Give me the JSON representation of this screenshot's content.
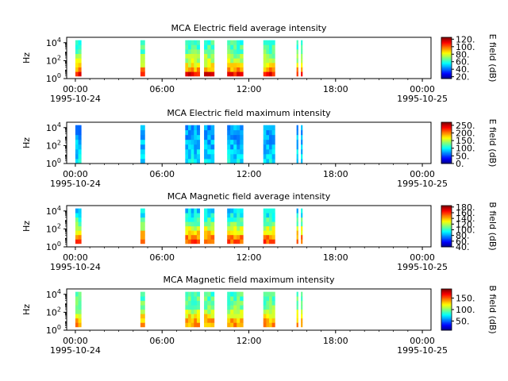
{
  "chart_data": [
    {
      "type": "heatmap",
      "title": "MCA  Electric field average intensity",
      "ylabel": "Hz",
      "colorbar_label": "E field (dB)",
      "colorbar_range": [
        15,
        125
      ],
      "colorbar_ticks": [
        "20.",
        "40.",
        "60.",
        "80.",
        "100.",
        "120."
      ],
      "x_ticks": [
        "00:00\n1995-10-24",
        "06:00",
        "12:00",
        "18:00",
        "00:00\n1995-10-25"
      ],
      "y_ticks": [
        "10^0",
        "10^2",
        "10^4"
      ],
      "y_log_range": [
        0,
        4.6
      ],
      "x_range_hours": [
        -0.6,
        24.6
      ],
      "segments_hours": [
        [
          0.0,
          0.4
        ],
        [
          4.5,
          4.8
        ],
        [
          7.6,
          8.6
        ],
        [
          8.9,
          9.6
        ],
        [
          10.5,
          11.6
        ],
        [
          13.0,
          13.8
        ],
        [
          15.3,
          15.4
        ],
        [
          15.6,
          15.7
        ]
      ]
    },
    {
      "type": "heatmap",
      "title": "MCA  Electric field maximum intensity",
      "ylabel": "Hz",
      "colorbar_label": "E field (dB)",
      "colorbar_range": [
        0,
        270
      ],
      "colorbar_ticks": [
        "0.",
        "50.",
        "100.",
        "150.",
        "200.",
        "250."
      ],
      "x_ticks": [
        "00:00\n1995-10-24",
        "06:00",
        "12:00",
        "18:00",
        "00:00\n1995-10-25"
      ],
      "y_ticks": [
        "10^0",
        "10^2",
        "10^4"
      ],
      "y_log_range": [
        0,
        4.6
      ],
      "x_range_hours": [
        -0.6,
        24.6
      ],
      "segments_hours": [
        [
          0.0,
          0.4
        ],
        [
          4.5,
          4.8
        ],
        [
          7.6,
          8.6
        ],
        [
          8.9,
          9.6
        ],
        [
          10.5,
          11.6
        ],
        [
          13.0,
          13.8
        ],
        [
          15.3,
          15.4
        ],
        [
          15.6,
          15.7
        ]
      ]
    },
    {
      "type": "heatmap",
      "title": "MCA  Magnetic field average intensity",
      "ylabel": "Hz",
      "colorbar_label": "B field (dB)",
      "colorbar_range": [
        40,
        185
      ],
      "colorbar_ticks": [
        "40.",
        "60.",
        "80.",
        "100.",
        "120.",
        "140.",
        "160.",
        "180."
      ],
      "x_ticks": [
        "00:00\n1995-10-24",
        "06:00",
        "12:00",
        "18:00",
        "00:00\n1995-10-25"
      ],
      "y_ticks": [
        "10^0",
        "10^2",
        "10^4"
      ],
      "y_log_range": [
        0,
        4.6
      ],
      "x_range_hours": [
        -0.6,
        24.6
      ],
      "segments_hours": [
        [
          0.0,
          0.4
        ],
        [
          4.5,
          4.8
        ],
        [
          7.6,
          8.6
        ],
        [
          8.9,
          9.6
        ],
        [
          10.5,
          11.6
        ],
        [
          13.0,
          13.8
        ],
        [
          15.3,
          15.4
        ],
        [
          15.6,
          15.7
        ]
      ]
    },
    {
      "type": "heatmap",
      "title": "MCA  Magnetic field maximum intensity",
      "ylabel": "Hz",
      "colorbar_label": "B field (dB)",
      "colorbar_range": [
        10,
        190
      ],
      "colorbar_ticks": [
        "50.",
        "100.",
        "150."
      ],
      "x_ticks": [
        "00:00\n1995-10-24",
        "06:00",
        "12:00",
        "18:00",
        "00:00\n1995-10-25"
      ],
      "y_ticks": [
        "10^0",
        "10^2",
        "10^4"
      ],
      "y_log_range": [
        0,
        4.6
      ],
      "x_range_hours": [
        -0.6,
        24.6
      ],
      "segments_hours": [
        [
          0.0,
          0.4
        ],
        [
          4.5,
          4.8
        ],
        [
          7.6,
          8.6
        ],
        [
          8.9,
          9.6
        ],
        [
          10.5,
          11.6
        ],
        [
          13.0,
          13.8
        ],
        [
          15.3,
          15.4
        ],
        [
          15.6,
          15.7
        ]
      ]
    }
  ]
}
